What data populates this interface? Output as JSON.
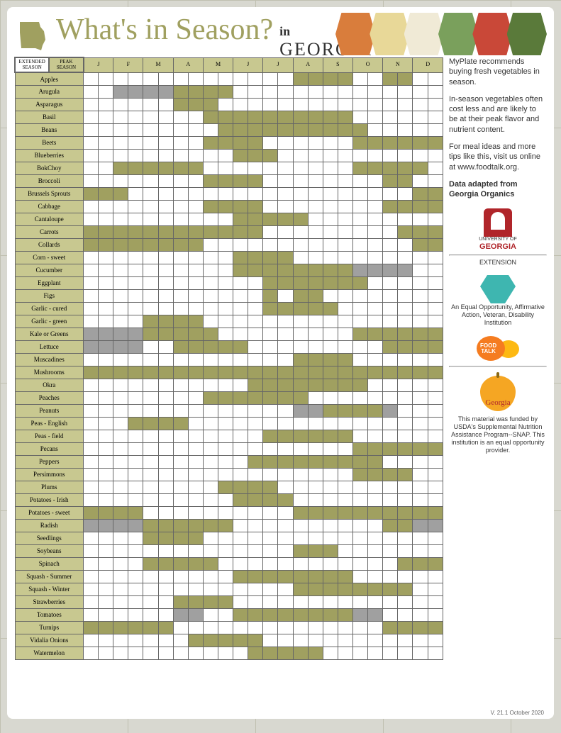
{
  "colors": {
    "peak": "#a0a060",
    "extended": "#a0a0a0",
    "header_bg": "#c8c890"
  },
  "title": {
    "script": "What's in Season?",
    "in": "in",
    "state": "GEORGIA"
  },
  "legend": {
    "extended": "EXTENDED SEASON",
    "peak": "PEAK SEASON"
  },
  "months": [
    "J",
    "F",
    "M",
    "A",
    "M",
    "J",
    "J",
    "A",
    "S",
    "O",
    "N",
    "D"
  ],
  "months_subcols": 24,
  "produce": [
    {
      "name": "Apples",
      "cells": [
        "",
        "",
        "",
        "",
        "",
        "",
        "",
        "",
        "",
        "",
        "",
        "",
        "",
        "",
        "P",
        "P",
        "P",
        "P",
        "",
        "",
        "P",
        "P",
        "",
        ""
      ]
    },
    {
      "name": "Arugula",
      "cells": [
        "",
        "",
        "E",
        "E",
        "E",
        "E",
        "P",
        "P",
        "P",
        "P",
        "",
        "",
        "",
        "",
        "",
        "",
        "",
        "",
        "",
        "",
        "",
        "",
        "",
        ""
      ]
    },
    {
      "name": "Asparagus",
      "cells": [
        "",
        "",
        "",
        "",
        "",
        "",
        "P",
        "P",
        "P",
        "",
        "",
        "",
        "",
        "",
        "",
        "",
        "",
        "",
        "",
        "",
        "",
        "",
        "",
        ""
      ]
    },
    {
      "name": "Basil",
      "cells": [
        "",
        "",
        "",
        "",
        "",
        "",
        "",
        "",
        "P",
        "P",
        "P",
        "P",
        "P",
        "P",
        "P",
        "P",
        "P",
        "P",
        "",
        "",
        "",
        "",
        "",
        ""
      ]
    },
    {
      "name": "Beans",
      "cells": [
        "",
        "",
        "",
        "",
        "",
        "",
        "",
        "",
        "",
        "P",
        "P",
        "P",
        "P",
        "P",
        "P",
        "P",
        "P",
        "P",
        "P",
        "",
        "",
        "",
        "",
        ""
      ]
    },
    {
      "name": "Beets",
      "cells": [
        "",
        "",
        "",
        "",
        "",
        "",
        "",
        "",
        "P",
        "P",
        "P",
        "P",
        "",
        "",
        "",
        "",
        "",
        "",
        "P",
        "P",
        "P",
        "P",
        "P",
        "P"
      ]
    },
    {
      "name": "Blueberries",
      "cells": [
        "",
        "",
        "",
        "",
        "",
        "",
        "",
        "",
        "",
        "",
        "P",
        "P",
        "P",
        "",
        "",
        "",
        "",
        "",
        "",
        "",
        "",
        "",
        "",
        ""
      ]
    },
    {
      "name": "BokChoy",
      "cells": [
        "",
        "",
        "P",
        "P",
        "P",
        "P",
        "P",
        "P",
        "",
        "",
        "",
        "",
        "",
        "",
        "",
        "",
        "",
        "",
        "P",
        "P",
        "P",
        "P",
        "P",
        ""
      ]
    },
    {
      "name": "Broccoli",
      "cells": [
        "",
        "",
        "",
        "",
        "",
        "",
        "",
        "",
        "P",
        "P",
        "P",
        "P",
        "",
        "",
        "",
        "",
        "",
        "",
        "",
        "",
        "P",
        "P",
        "",
        ""
      ]
    },
    {
      "name": "Brussels Sprouts",
      "cells": [
        "P",
        "P",
        "P",
        "",
        "",
        "",
        "",
        "",
        "",
        "",
        "",
        "",
        "",
        "",
        "",
        "",
        "",
        "",
        "",
        "",
        "",
        "",
        "P",
        "P"
      ]
    },
    {
      "name": "Cabbage",
      "cells": [
        "",
        "",
        "",
        "",
        "",
        "",
        "",
        "",
        "P",
        "P",
        "P",
        "P",
        "",
        "",
        "",
        "",
        "",
        "",
        "",
        "",
        "P",
        "P",
        "P",
        "P"
      ]
    },
    {
      "name": "Cantaloupe",
      "cells": [
        "",
        "",
        "",
        "",
        "",
        "",
        "",
        "",
        "",
        "",
        "P",
        "P",
        "P",
        "P",
        "P",
        "",
        "",
        "",
        "",
        "",
        "",
        "",
        "",
        ""
      ]
    },
    {
      "name": "Carrots",
      "cells": [
        "P",
        "P",
        "P",
        "P",
        "P",
        "P",
        "P",
        "P",
        "P",
        "P",
        "P",
        "P",
        "",
        "",
        "",
        "",
        "",
        "",
        "",
        "",
        "",
        "P",
        "P",
        "P"
      ]
    },
    {
      "name": "Collards",
      "cells": [
        "P",
        "P",
        "P",
        "P",
        "P",
        "P",
        "P",
        "P",
        "",
        "",
        "",
        "",
        "",
        "",
        "",
        "",
        "",
        "",
        "",
        "",
        "",
        "",
        "P",
        "P"
      ]
    },
    {
      "name": "Corn - sweet",
      "cells": [
        "",
        "",
        "",
        "",
        "",
        "",
        "",
        "",
        "",
        "",
        "P",
        "P",
        "P",
        "P",
        "",
        "",
        "",
        "",
        "",
        "",
        "",
        "",
        "",
        ""
      ]
    },
    {
      "name": "Cucumber",
      "cells": [
        "",
        "",
        "",
        "",
        "",
        "",
        "",
        "",
        "",
        "",
        "P",
        "P",
        "P",
        "P",
        "P",
        "P",
        "P",
        "P",
        "E",
        "E",
        "E",
        "E",
        "",
        ""
      ]
    },
    {
      "name": "Eggplant",
      "cells": [
        "",
        "",
        "",
        "",
        "",
        "",
        "",
        "",
        "",
        "",
        "",
        "",
        "P",
        "P",
        "P",
        "P",
        "P",
        "P",
        "P",
        "",
        "",
        "",
        "",
        ""
      ]
    },
    {
      "name": "Figs",
      "cells": [
        "",
        "",
        "",
        "",
        "",
        "",
        "",
        "",
        "",
        "",
        "",
        "",
        "P",
        "",
        "P",
        "P",
        "",
        "",
        "",
        "",
        "",
        "",
        "",
        ""
      ]
    },
    {
      "name": "Garlic - cured",
      "cells": [
        "",
        "",
        "",
        "",
        "",
        "",
        "",
        "",
        "",
        "",
        "",
        "",
        "P",
        "P",
        "P",
        "P",
        "P",
        "",
        "",
        "",
        "",
        "",
        "",
        ""
      ]
    },
    {
      "name": "Garlic - green",
      "cells": [
        "",
        "",
        "",
        "",
        "P",
        "P",
        "P",
        "P",
        "",
        "",
        "",
        "",
        "",
        "",
        "",
        "",
        "",
        "",
        "",
        "",
        "",
        "",
        "",
        ""
      ]
    },
    {
      "name": "Kale or Greens",
      "cells": [
        "E",
        "E",
        "E",
        "E",
        "P",
        "P",
        "P",
        "P",
        "P",
        "",
        "",
        "",
        "",
        "",
        "",
        "",
        "",
        "",
        "P",
        "P",
        "P",
        "P",
        "P",
        "P"
      ]
    },
    {
      "name": "Lettuce",
      "cells": [
        "E",
        "E",
        "E",
        "E",
        "",
        "",
        "P",
        "P",
        "P",
        "P",
        "P",
        "",
        "",
        "",
        "",
        "",
        "",
        "",
        "",
        "",
        "P",
        "P",
        "P",
        "P"
      ]
    },
    {
      "name": "Muscadines",
      "cells": [
        "",
        "",
        "",
        "",
        "",
        "",
        "",
        "",
        "",
        "",
        "",
        "",
        "",
        "",
        "P",
        "P",
        "P",
        "P",
        "",
        "",
        "",
        "",
        "",
        ""
      ]
    },
    {
      "name": "Mushrooms",
      "cells": [
        "P",
        "P",
        "P",
        "P",
        "P",
        "P",
        "P",
        "P",
        "P",
        "P",
        "P",
        "P",
        "P",
        "P",
        "P",
        "P",
        "P",
        "P",
        "P",
        "P",
        "P",
        "P",
        "P",
        "P"
      ]
    },
    {
      "name": "Okra",
      "cells": [
        "",
        "",
        "",
        "",
        "",
        "",
        "",
        "",
        "",
        "",
        "",
        "P",
        "P",
        "P",
        "P",
        "P",
        "P",
        "P",
        "P",
        "",
        "",
        "",
        "",
        ""
      ]
    },
    {
      "name": "Peaches",
      "cells": [
        "",
        "",
        "",
        "",
        "",
        "",
        "",
        "",
        "P",
        "P",
        "P",
        "P",
        "P",
        "P",
        "P",
        "",
        "",
        "",
        "",
        "",
        "",
        "",
        "",
        ""
      ]
    },
    {
      "name": "Peanuts",
      "cells": [
        "",
        "",
        "",
        "",
        "",
        "",
        "",
        "",
        "",
        "",
        "",
        "",
        "",
        "",
        "E",
        "E",
        "P",
        "P",
        "P",
        "P",
        "E",
        "",
        "",
        ""
      ]
    },
    {
      "name": "Peas - English",
      "cells": [
        "",
        "",
        "",
        "P",
        "P",
        "P",
        "P",
        "",
        "",
        "",
        "",
        "",
        "",
        "",
        "",
        "",
        "",
        "",
        "",
        "",
        "",
        "",
        "",
        ""
      ]
    },
    {
      "name": "Peas - field",
      "cells": [
        "",
        "",
        "",
        "",
        "",
        "",
        "",
        "",
        "",
        "",
        "",
        "",
        "P",
        "P",
        "P",
        "P",
        "P",
        "P",
        "",
        "",
        "",
        "",
        "",
        ""
      ]
    },
    {
      "name": "Pecans",
      "cells": [
        "",
        "",
        "",
        "",
        "",
        "",
        "",
        "",
        "",
        "",
        "",
        "",
        "",
        "",
        "",
        "",
        "",
        "",
        "P",
        "P",
        "P",
        "P",
        "P",
        "P"
      ]
    },
    {
      "name": "Peppers",
      "cells": [
        "",
        "",
        "",
        "",
        "",
        "",
        "",
        "",
        "",
        "",
        "",
        "P",
        "P",
        "P",
        "P",
        "P",
        "P",
        "P",
        "P",
        "P",
        "",
        "",
        "",
        ""
      ]
    },
    {
      "name": "Persimmons",
      "cells": [
        "",
        "",
        "",
        "",
        "",
        "",
        "",
        "",
        "",
        "",
        "",
        "",
        "",
        "",
        "",
        "",
        "",
        "",
        "P",
        "P",
        "P",
        "P",
        "",
        ""
      ]
    },
    {
      "name": "Plums",
      "cells": [
        "",
        "",
        "",
        "",
        "",
        "",
        "",
        "",
        "",
        "P",
        "P",
        "P",
        "P",
        "",
        "",
        "",
        "",
        "",
        "",
        "",
        "",
        "",
        "",
        ""
      ]
    },
    {
      "name": "Potatoes - Irish",
      "cells": [
        "",
        "",
        "",
        "",
        "",
        "",
        "",
        "",
        "",
        "",
        "P",
        "P",
        "P",
        "P",
        "",
        "",
        "",
        "",
        "",
        "",
        "",
        "",
        "",
        ""
      ]
    },
    {
      "name": "Potatoes - sweet",
      "cells": [
        "P",
        "P",
        "P",
        "P",
        "",
        "",
        "",
        "",
        "",
        "",
        "",
        "",
        "",
        "",
        "P",
        "P",
        "P",
        "P",
        "P",
        "P",
        "P",
        "P",
        "P",
        "P"
      ]
    },
    {
      "name": "Radish",
      "cells": [
        "E",
        "E",
        "E",
        "E",
        "P",
        "P",
        "P",
        "P",
        "P",
        "P",
        "",
        "",
        "",
        "",
        "",
        "",
        "",
        "",
        "",
        "",
        "P",
        "P",
        "E",
        "E"
      ]
    },
    {
      "name": "Seedlings",
      "cells": [
        "",
        "",
        "",
        "",
        "P",
        "P",
        "P",
        "P",
        "",
        "",
        "",
        "",
        "",
        "",
        "",
        "",
        "",
        "",
        "",
        "",
        "",
        "",
        "",
        ""
      ]
    },
    {
      "name": "Soybeans",
      "cells": [
        "",
        "",
        "",
        "",
        "",
        "",
        "",
        "",
        "",
        "",
        "",
        "",
        "",
        "",
        "P",
        "P",
        "P",
        "",
        "",
        "",
        "",
        "",
        "",
        ""
      ]
    },
    {
      "name": "Spinach",
      "cells": [
        "",
        "",
        "",
        "",
        "P",
        "P",
        "P",
        "P",
        "P",
        "",
        "",
        "",
        "",
        "",
        "",
        "",
        "",
        "",
        "",
        "",
        "",
        "P",
        "P",
        "P"
      ]
    },
    {
      "name": "Squash - Summer",
      "cells": [
        "",
        "",
        "",
        "",
        "",
        "",
        "",
        "",
        "",
        "",
        "P",
        "P",
        "P",
        "P",
        "P",
        "P",
        "P",
        "P",
        "",
        "",
        "",
        "",
        "",
        ""
      ]
    },
    {
      "name": "Squash - Winter",
      "cells": [
        "",
        "",
        "",
        "",
        "",
        "",
        "",
        "",
        "",
        "",
        "",
        "",
        "",
        "",
        "P",
        "P",
        "P",
        "P",
        "P",
        "P",
        "P",
        "P",
        "",
        ""
      ]
    },
    {
      "name": "Strawberries",
      "cells": [
        "",
        "",
        "",
        "",
        "",
        "",
        "P",
        "P",
        "P",
        "P",
        "",
        "",
        "",
        "",
        "",
        "",
        "",
        "",
        "",
        "",
        "",
        "",
        "",
        ""
      ]
    },
    {
      "name": "Tomatoes",
      "cells": [
        "",
        "",
        "",
        "",
        "",
        "",
        "E",
        "E",
        "",
        "",
        "P",
        "P",
        "P",
        "P",
        "P",
        "P",
        "P",
        "P",
        "E",
        "E",
        "",
        "",
        "",
        ""
      ]
    },
    {
      "name": "Turnips",
      "cells": [
        "P",
        "P",
        "P",
        "P",
        "P",
        "P",
        "",
        "",
        "",
        "",
        "",
        "",
        "",
        "",
        "",
        "",
        "",
        "",
        "",
        "",
        "P",
        "P",
        "P",
        "P"
      ]
    },
    {
      "name": "Vidalia Onions",
      "cells": [
        "",
        "",
        "",
        "",
        "",
        "",
        "",
        "P",
        "P",
        "P",
        "P",
        "P",
        "",
        "",
        "",
        "",
        "",
        "",
        "",
        "",
        "",
        "",
        "",
        ""
      ]
    },
    {
      "name": "Watermelon",
      "cells": [
        "",
        "",
        "",
        "",
        "",
        "",
        "",
        "",
        "",
        "",
        "",
        "P",
        "P",
        "P",
        "P",
        "P",
        "",
        "",
        "",
        "",
        "",
        "",
        "",
        ""
      ]
    }
  ],
  "sidebar": {
    "p1": "MyPlate recommends buying fresh vegetables in season.",
    "p2": "In-season vegetables often cost less and are likely to be at their peak flavor and nutrient content.",
    "p3": "For meal ideas and more tips like this, visit us online at www.foodtalk.org.",
    "p4": "Data adapted from Georgia Organics",
    "uga1": "UNIVERSITY OF",
    "uga2": "GEORGIA",
    "uga3": "EXTENSION",
    "equal": "An Equal Opportunity, Affirmative Action, Veteran, Disability Institution",
    "foodtalk1": "FOOD",
    "foodtalk2": "TALK",
    "snap": "Georgia",
    "disclaimer": "This material was funded by USDA's Supplemental Nutrition Assistance Program--SNAP. This institution is an equal opportunity provider."
  },
  "version": "V. 21.1 October 2020",
  "produce_strip_colors": [
    "#d97d3c",
    "#e8d898",
    "#f0ead6",
    "#7aa05c",
    "#c94838",
    "#5a7a3a"
  ]
}
